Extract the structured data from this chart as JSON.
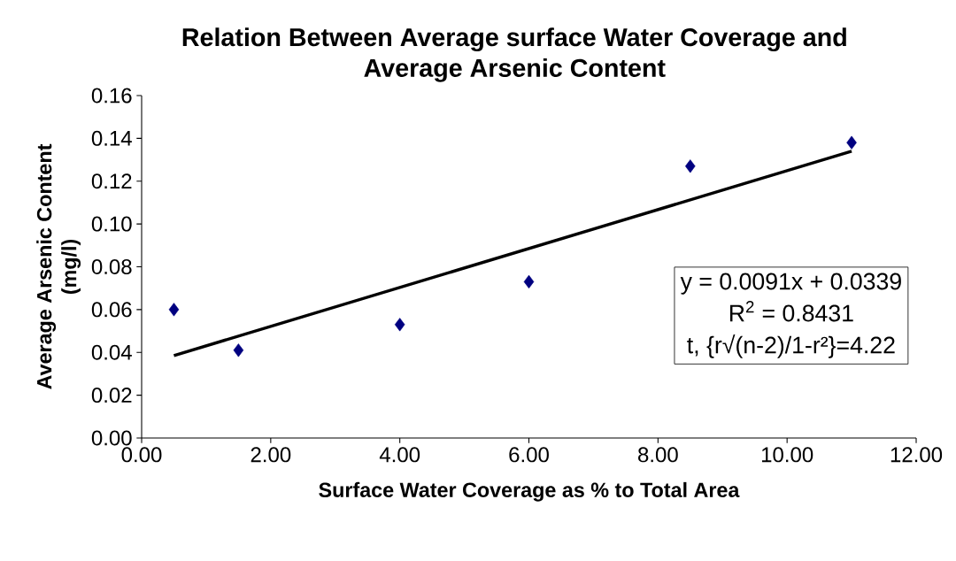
{
  "chart_data": {
    "type": "scatter",
    "title": "Relation Between Average surface Water Coverage and Average Arsenic Content",
    "xlabel": "Surface Water Coverage as % to Total Area",
    "ylabel": "Average Arsenic Content (mg/l)",
    "x": [
      0.5,
      1.5,
      4,
      6,
      8.5,
      11
    ],
    "series": [
      {
        "color": "#000080",
        "marker": "diamond",
        "values": [
          0.06,
          0.041,
          0.053,
          0.073,
          0.127,
          0.138
        ]
      },
      {
        "type": "line",
        "color": "#000000",
        "marker": "none",
        "line_style": "solid",
        "x": [
          0.5,
          11
        ],
        "values": [
          0.0385,
          0.134
        ]
      }
    ],
    "xlim": [
      0,
      12
    ],
    "ylim": [
      0,
      0.16
    ],
    "xticks": [
      {
        "value": 0,
        "label": "0.00"
      },
      {
        "value": 2,
        "label": "2.00"
      },
      {
        "value": 4,
        "label": "4.00"
      },
      {
        "value": 6,
        "label": "6.00"
      },
      {
        "value": 8,
        "label": "8.00"
      },
      {
        "value": 10,
        "label": "10.00"
      },
      {
        "value": 12,
        "label": "12.00"
      }
    ],
    "yticks": [
      {
        "value": 0,
        "label": "0.00"
      },
      {
        "value": 0.02,
        "label": "0.02"
      },
      {
        "value": 0.04,
        "label": "0.04"
      },
      {
        "value": 0.06,
        "label": "0.06"
      },
      {
        "value": 0.08,
        "label": "0.08"
      },
      {
        "value": 0.1,
        "label": "0.10"
      },
      {
        "value": 0.12,
        "label": "0.12"
      },
      {
        "value": 0.14,
        "label": "0.14"
      },
      {
        "value": 0.16,
        "label": "0.16"
      }
    ],
    "annotations": [
      "y = 0.0091x + 0.0339",
      "R$^{2}$ = 0.8431",
      "t, {r√(n-2)/1-r²}=4.22"
    ],
    "grid": false
  }
}
